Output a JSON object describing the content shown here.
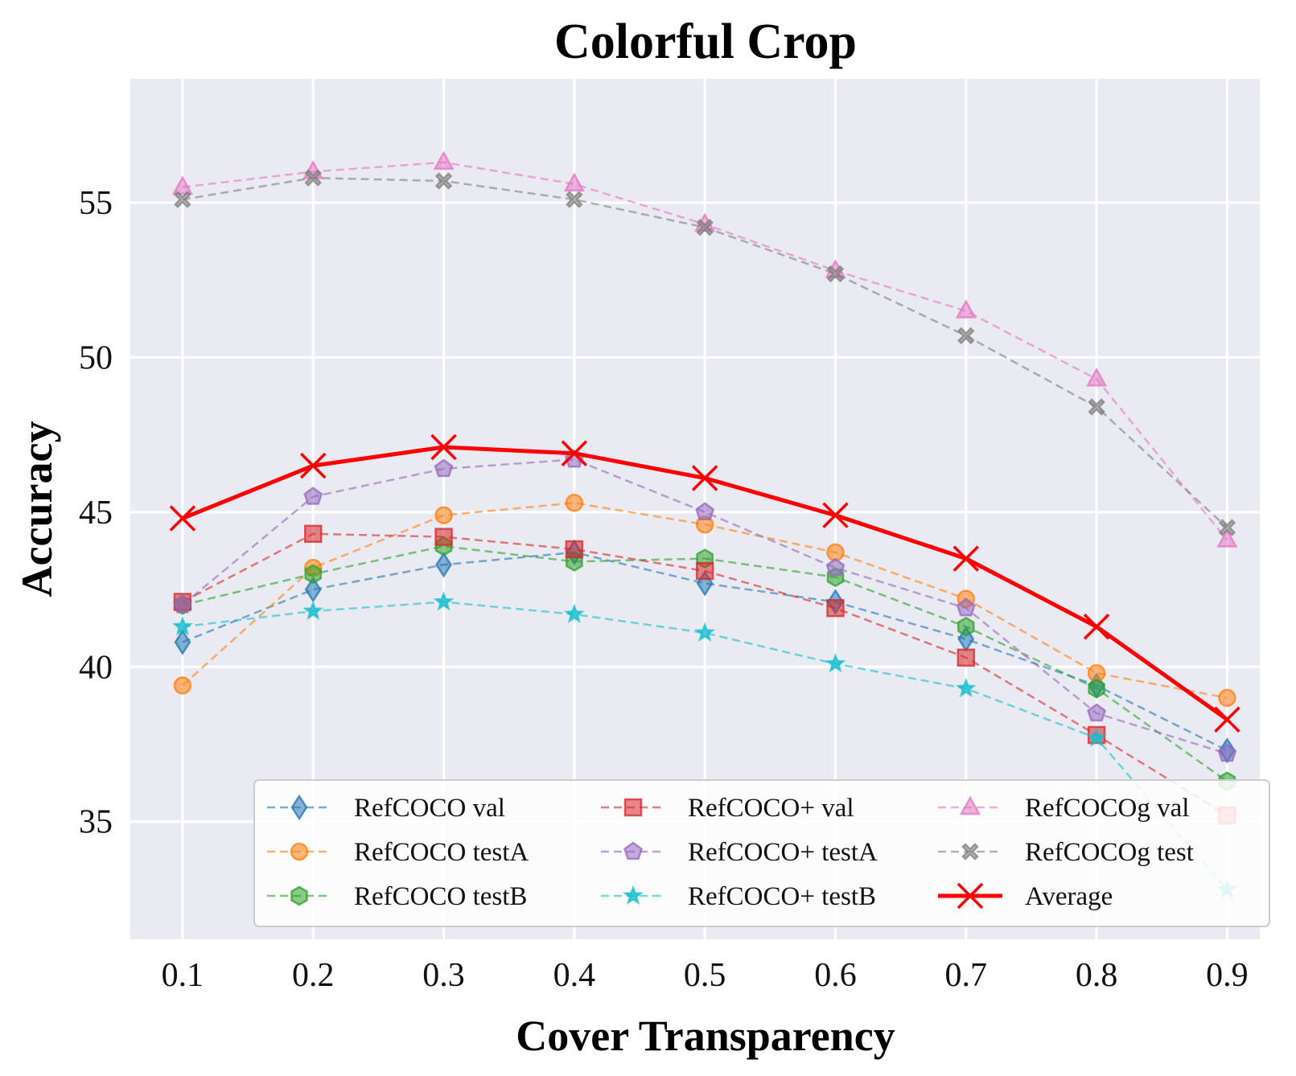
{
  "chart_data": {
    "type": "line",
    "title": "Colorful Crop",
    "xlabel": "Cover Transparency",
    "ylabel": "Accuracy",
    "x": [
      0.1,
      0.2,
      0.3,
      0.4,
      0.5,
      0.6,
      0.7,
      0.8,
      0.9
    ],
    "x_tick_labels": [
      "0.1",
      "0.2",
      "0.3",
      "0.4",
      "0.5",
      "0.6",
      "0.7",
      "0.8",
      "0.9"
    ],
    "xlim": [
      0.06,
      0.925
    ],
    "ylim": [
      31.2,
      59.0
    ],
    "y_ticks": [
      35,
      40,
      45,
      50,
      55
    ],
    "y_tick_labels": [
      "35",
      "40",
      "45",
      "50",
      "55"
    ],
    "grid": true,
    "legend_position": "lower-right",
    "series": [
      {
        "name": "RefCOCO val",
        "color": "#1f77b4",
        "marker": "thin-diamond",
        "style": "dashed",
        "values": [
          40.8,
          42.5,
          43.3,
          43.7,
          42.7,
          42.1,
          40.9,
          39.4,
          37.3
        ]
      },
      {
        "name": "RefCOCO testA",
        "color": "#ff7f0e",
        "marker": "circle",
        "style": "dashed",
        "values": [
          39.4,
          43.2,
          44.9,
          45.3,
          44.6,
          43.7,
          42.2,
          39.8,
          39.0
        ]
      },
      {
        "name": "RefCOCO testB",
        "color": "#2ca02c",
        "marker": "hexagon",
        "style": "dashed",
        "values": [
          42.0,
          43.0,
          43.9,
          43.4,
          43.5,
          42.9,
          41.3,
          39.3,
          36.3
        ]
      },
      {
        "name": "RefCOCO+ val",
        "color": "#d62728",
        "marker": "square",
        "style": "dashed",
        "values": [
          42.1,
          44.3,
          44.2,
          43.8,
          43.1,
          41.9,
          40.3,
          37.8,
          35.2
        ]
      },
      {
        "name": "RefCOCO+ testA",
        "color": "#9467bd",
        "marker": "pentagon",
        "style": "dashed",
        "values": [
          42.0,
          45.5,
          46.4,
          46.7,
          45.0,
          43.2,
          41.9,
          38.5,
          37.2
        ]
      },
      {
        "name": "RefCOCO+ testB",
        "color": "#17becf",
        "marker": "star",
        "style": "dashed",
        "values": [
          41.3,
          41.8,
          42.1,
          41.7,
          41.1,
          40.1,
          39.3,
          37.7,
          32.8
        ]
      },
      {
        "name": "RefCOCOg val",
        "color": "#e377c2",
        "marker": "triangle",
        "style": "dashed",
        "values": [
          55.5,
          56.0,
          56.3,
          55.6,
          54.3,
          52.8,
          51.5,
          49.3,
          44.1
        ]
      },
      {
        "name": "RefCOCOg test",
        "color": "#7f7f7f",
        "marker": "x-filled",
        "style": "dashed",
        "values": [
          55.1,
          55.8,
          55.7,
          55.1,
          54.2,
          52.7,
          50.7,
          48.4,
          44.5
        ]
      },
      {
        "name": "Average",
        "color": "#ff0000",
        "marker": "x",
        "style": "solid",
        "values": [
          44.8,
          46.5,
          47.1,
          46.9,
          46.1,
          44.9,
          43.5,
          41.3,
          38.3
        ]
      }
    ]
  }
}
